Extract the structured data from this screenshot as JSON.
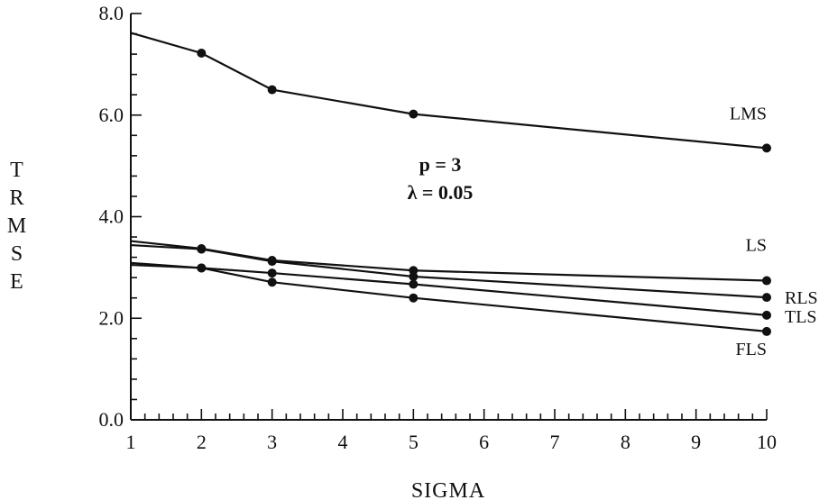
{
  "chart_data": {
    "type": "line",
    "x": [
      1,
      2,
      3,
      5,
      10
    ],
    "xlabel": "SIGMA",
    "ylabel": "TRMSE",
    "xlim": [
      1,
      10
    ],
    "ylim": [
      0,
      8
    ],
    "xticks": [
      "1",
      "2",
      "3",
      "4",
      "5",
      "6",
      "7",
      "8",
      "9",
      "10"
    ],
    "yticks": [
      "0.0",
      "2.0",
      "4.0",
      "6.0",
      "8.0"
    ],
    "grid": false,
    "legend": "none",
    "annotations": [
      "p = 3",
      "λ = 0.05"
    ],
    "series": [
      {
        "name": "LMS",
        "values": [
          7.62,
          7.22,
          6.5,
          6.02,
          5.35
        ]
      },
      {
        "name": "LS",
        "values": [
          3.52,
          3.37,
          3.14,
          2.94,
          2.74
        ]
      },
      {
        "name": "RLS",
        "values": [
          3.44,
          3.36,
          3.12,
          2.82,
          2.41
        ]
      },
      {
        "name": "TLS",
        "values": [
          3.09,
          2.99,
          2.89,
          2.67,
          2.06
        ]
      },
      {
        "name": "FLS",
        "values": [
          3.05,
          2.99,
          2.71,
          2.4,
          1.74
        ]
      }
    ]
  }
}
